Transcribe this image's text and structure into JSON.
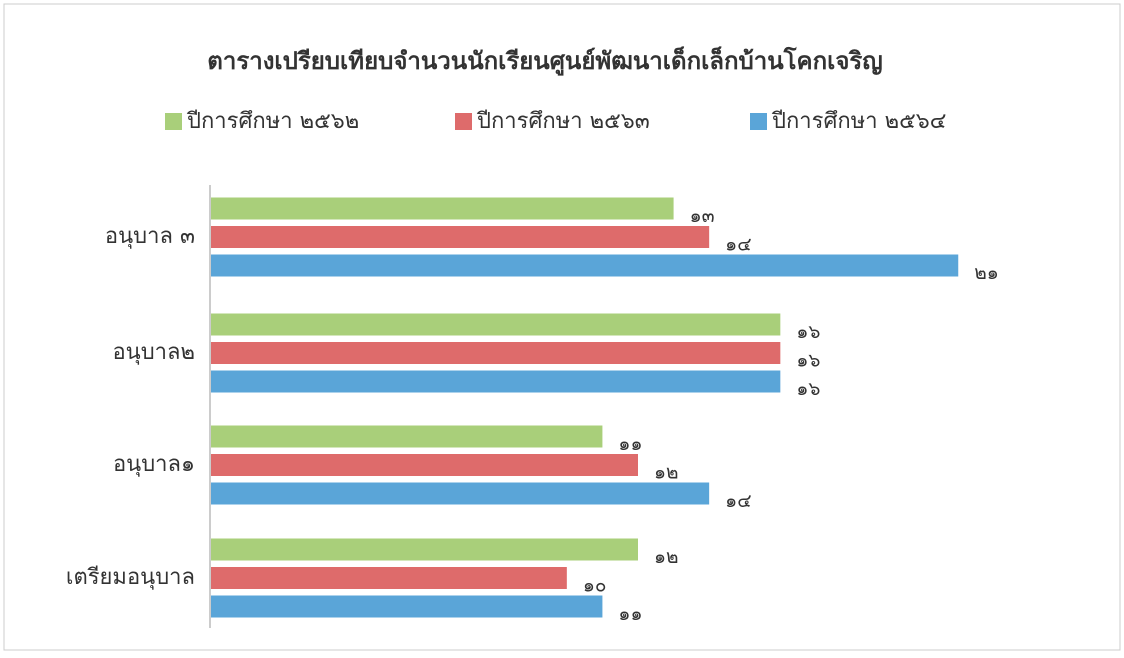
{
  "chart_data": {
    "type": "hbar",
    "title": "ตารางเปรียบเทียบจำนวนนักเรียนศูนย์พัฒนาเด็กเล็กบ้านโคกเจริญ",
    "categories": [
      "อนุบาล ๓",
      "อนุบาล๒",
      "อนุบาล๑",
      "เตรียมอนุบาล"
    ],
    "series": [
      {
        "name": "ปีการศึกษา ๒๕๖๒",
        "color": "#a9cf7a",
        "values": [
          13,
          16,
          11,
          12
        ],
        "value_labels": [
          "๑๓",
          "๑๖",
          "๑๑",
          "๑๒"
        ]
      },
      {
        "name": "ปีการศึกษา ๒๕๖๓",
        "color": "#de6b6b",
        "values": [
          14,
          16,
          12,
          10
        ],
        "value_labels": [
          "๑๔",
          "๑๖",
          "๑๒",
          "๑๐"
        ]
      },
      {
        "name": "ปีการศึกษา ๒๕๖๔",
        "color": "#5aa5d8",
        "values": [
          21,
          16,
          14,
          11
        ],
        "value_labels": [
          "๒๑",
          "๑๖",
          "๑๔",
          "๑๑"
        ]
      }
    ],
    "xlim": [
      0,
      24
    ],
    "legend": "top"
  }
}
